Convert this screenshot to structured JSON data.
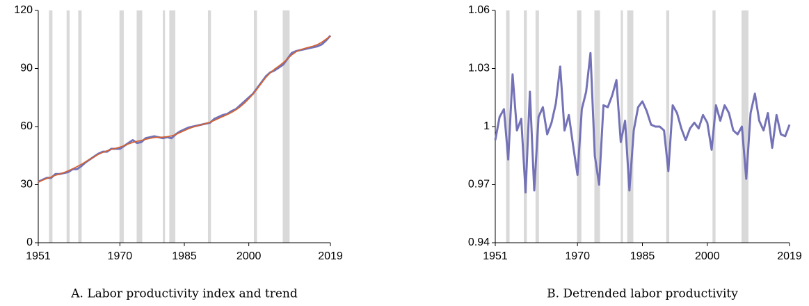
{
  "chart_data": [
    {
      "type": "line",
      "caption": "A. Labor productivity index and trend",
      "x": [
        1951,
        1952,
        1953,
        1954,
        1955,
        1956,
        1957,
        1958,
        1959,
        1960,
        1961,
        1962,
        1963,
        1964,
        1965,
        1966,
        1967,
        1968,
        1969,
        1970,
        1971,
        1972,
        1973,
        1974,
        1975,
        1976,
        1977,
        1978,
        1979,
        1980,
        1981,
        1982,
        1983,
        1984,
        1985,
        1986,
        1987,
        1988,
        1989,
        1990,
        1991,
        1992,
        1993,
        1994,
        1995,
        1996,
        1997,
        1998,
        1999,
        2000,
        2001,
        2002,
        2003,
        2004,
        2005,
        2006,
        2007,
        2008,
        2009,
        2010,
        2011,
        2012,
        2013,
        2014,
        2015,
        2016,
        2017,
        2018,
        2019
      ],
      "series": [
        {
          "color": "#7472b6",
          "values": [
            31.5,
            32.5,
            33.5,
            33.5,
            35.5,
            35.5,
            36,
            36.5,
            38,
            38,
            39.5,
            41.5,
            43,
            44.5,
            46,
            47,
            47,
            48.5,
            48.5,
            48.5,
            50,
            51.5,
            53,
            51.5,
            52,
            54,
            54.5,
            55,
            54.5,
            54,
            54.5,
            54,
            56,
            57.5,
            58.5,
            59.5,
            60,
            60.5,
            61,
            61.5,
            62,
            64,
            65,
            66,
            66.5,
            68,
            69,
            71,
            73,
            75,
            77,
            80,
            83,
            86,
            88,
            89,
            90.5,
            92,
            95,
            98,
            99,
            99.5,
            100,
            100.5,
            101,
            101.5,
            102.5,
            104.5,
            107
          ]
        },
        {
          "color": "#d9622b",
          "values": [
            31.3,
            32.3,
            33.2,
            34,
            34.8,
            35.5,
            36.3,
            37.2,
            38.2,
            39.3,
            40.5,
            41.8,
            43.1,
            44.4,
            45.6,
            46.6,
            47.5,
            48.2,
            48.8,
            49.4,
            50.2,
            51,
            51.8,
            52.4,
            52.9,
            53.4,
            53.9,
            54.3,
            54.5,
            54.6,
            54.8,
            55.2,
            55.9,
            56.9,
            57.9,
            58.9,
            59.7,
            60.4,
            61,
            61.6,
            62.3,
            63.2,
            64.2,
            65.2,
            66.2,
            67.3,
            68.6,
            70.2,
            72.1,
            74.3,
            76.8,
            79.6,
            82.6,
            85.4,
            87.8,
            89.7,
            91.3,
            93,
            95,
            97,
            98.6,
            99.7,
            100.4,
            101,
            101.6,
            102.4,
            103.6,
            105.2,
            106.8
          ]
        }
      ],
      "recessions": [
        [
          1953.5,
          1954.3
        ],
        [
          1957.6,
          1958.3
        ],
        [
          1960.3,
          1961.1
        ],
        [
          1969.9,
          1970.9
        ],
        [
          1973.9,
          1975.2
        ],
        [
          1980.0,
          1980.5
        ],
        [
          1981.5,
          1982.9
        ],
        [
          1990.5,
          1991.2
        ],
        [
          2001.2,
          2001.9
        ],
        [
          2007.9,
          2009.5
        ]
      ],
      "xlim": [
        1951,
        2019
      ],
      "xticks": [
        1951,
        1970,
        1985,
        2000,
        2019
      ],
      "ylim": [
        0,
        120
      ],
      "yticks": [
        0,
        30,
        60,
        90,
        120
      ]
    },
    {
      "type": "line",
      "caption": "B. Detrended labor productivity",
      "x": [
        1951,
        1952,
        1953,
        1954,
        1955,
        1956,
        1957,
        1958,
        1959,
        1960,
        1961,
        1962,
        1963,
        1964,
        1965,
        1966,
        1967,
        1968,
        1969,
        1970,
        1971,
        1972,
        1973,
        1974,
        1975,
        1976,
        1977,
        1978,
        1979,
        1980,
        1981,
        1982,
        1983,
        1984,
        1985,
        1986,
        1987,
        1988,
        1989,
        1990,
        1991,
        1992,
        1993,
        1994,
        1995,
        1996,
        1997,
        1998,
        1999,
        2000,
        2001,
        2002,
        2003,
        2004,
        2005,
        2006,
        2007,
        2008,
        2009,
        2010,
        2011,
        2012,
        2013,
        2014,
        2015,
        2016,
        2017,
        2018,
        2019
      ],
      "series": [
        {
          "color": "#7472b6",
          "values": [
            0.993,
            1.005,
            1.009,
            0.983,
            1.027,
            0.998,
            1.004,
            0.966,
            1.018,
            0.967,
            1.005,
            1.01,
            0.996,
            1.002,
            1.012,
            1.031,
            0.998,
            1.006,
            0.99,
            0.975,
            1.009,
            1.018,
            1.038,
            0.985,
            0.97,
            1.011,
            1.01,
            1.016,
            1.024,
            0.992,
            1.003,
            0.967,
            0.998,
            1.01,
            1.013,
            1.008,
            1.001,
            1.0,
            1.0,
            0.998,
            0.977,
            1.011,
            1.007,
            0.999,
            0.993,
            0.999,
            1.002,
            0.999,
            1.006,
            1.002,
            0.988,
            1.011,
            1.003,
            1.011,
            1.007,
            0.998,
            0.996,
            1.0,
            0.973,
            1.007,
            1.017,
            1.003,
            0.998,
            1.007,
            0.989,
            1.006,
            0.996,
            0.995,
            1.001
          ]
        }
      ],
      "recessions": [
        [
          1953.5,
          1954.3
        ],
        [
          1957.6,
          1958.3
        ],
        [
          1960.3,
          1961.1
        ],
        [
          1969.9,
          1970.9
        ],
        [
          1973.9,
          1975.2
        ],
        [
          1980.0,
          1980.5
        ],
        [
          1981.5,
          1982.9
        ],
        [
          1990.5,
          1991.2
        ],
        [
          2001.2,
          2001.9
        ],
        [
          2007.9,
          2009.5
        ]
      ],
      "xlim": [
        1951,
        2019
      ],
      "xticks": [
        1951,
        1970,
        1985,
        2000,
        2019
      ],
      "ylim": [
        0.94,
        1.06
      ],
      "yticks": [
        0.94,
        0.97,
        1,
        1.03,
        1.06
      ]
    }
  ]
}
